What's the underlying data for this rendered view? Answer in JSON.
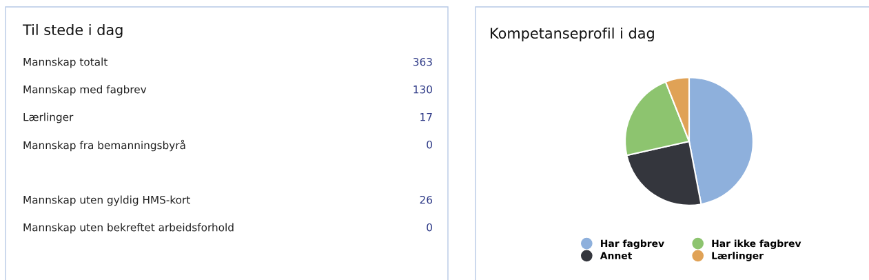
{
  "chart_data": [
    {
      "type": "other",
      "title": "Til stede i dag",
      "categories": [
        "Mannskap totalt",
        "Mannskap med fagbrev",
        "Lærlinger",
        "Mannskap fra bemanningsbyrå",
        null,
        "Mannskap uten gyldig HMS-kort",
        "Mannskap uten bekreftet arbeidsforhold"
      ],
      "values": [
        363,
        130,
        17,
        0,
        null,
        26,
        0
      ],
      "color": "#2e3a87",
      "data_labels": true
    },
    {
      "type": "pie",
      "title": "Kompetanseprofil i dag",
      "categories": [
        "Har fagbrev",
        "Annet",
        "Har ikke fagbrev",
        "Lærlinger"
      ],
      "values": [
        47,
        24.5,
        22.5,
        6
      ],
      "colors": [
        "#8eb0dc",
        "#34363d",
        "#8dc46f",
        "#e0a256"
      ],
      "legend": "bottom"
    }
  ]
}
